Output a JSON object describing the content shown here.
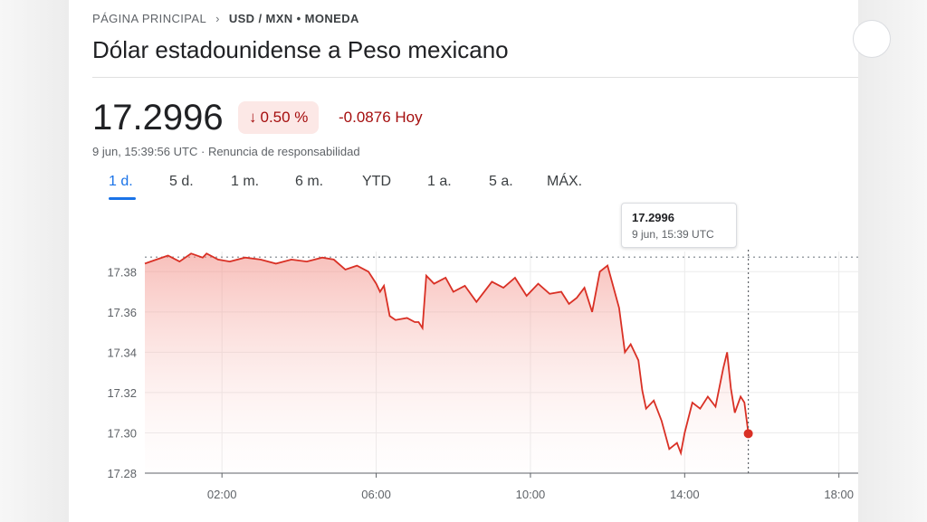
{
  "breadcrumb": {
    "home": "PÁGINA PRINCIPAL",
    "pair": "USD / MXN",
    "separator": "•",
    "kind": "MONEDA"
  },
  "title": "Dólar estadounidense a Peso mexicano",
  "quote": {
    "price": "17.2996",
    "percent_change": "0.50 %",
    "change_direction": "down",
    "abs_change": "-0.0876 Hoy",
    "timestamp": "9 jun, 15:39:56 UTC",
    "disclaimer": "Renuncia de responsabilidad"
  },
  "tabs": [
    {
      "label": "1 d.",
      "active": true
    },
    {
      "label": "5 d.",
      "active": false
    },
    {
      "label": "1 m.",
      "active": false
    },
    {
      "label": "6 m.",
      "active": false
    },
    {
      "label": "YTD",
      "active": false
    },
    {
      "label": "1 a.",
      "active": false
    },
    {
      "label": "5 a.",
      "active": false
    },
    {
      "label": "MÁX.",
      "active": false
    }
  ],
  "tooltip": {
    "value": "17.2996",
    "time": "9 jun, 15:39 UTC"
  },
  "colors": {
    "line": "#d93025",
    "accent": "#1a73e8",
    "negative": "#a50e0e"
  },
  "chart_data": {
    "type": "area",
    "x_unit": "hours (UTC)",
    "xlim": [
      0,
      18.5
    ],
    "ylim": [
      17.28,
      17.39
    ],
    "x_ticks": [
      2,
      6,
      10,
      14,
      18
    ],
    "x_tick_labels": [
      "02:00",
      "06:00",
      "10:00",
      "14:00",
      "18:00"
    ],
    "y_ticks": [
      17.28,
      17.3,
      17.32,
      17.34,
      17.36,
      17.38
    ],
    "y_tick_labels": [
      "17.28",
      "17.30",
      "17.32",
      "17.34",
      "17.36",
      "17.38"
    ],
    "reference_value": 17.3872,
    "current": {
      "x": 15.65,
      "y": 17.2996
    },
    "x": [
      0.0,
      0.3,
      0.6,
      0.9,
      1.2,
      1.5,
      1.6,
      1.9,
      2.2,
      2.6,
      3.0,
      3.4,
      3.8,
      4.2,
      4.6,
      4.9,
      5.2,
      5.5,
      5.8,
      6.0,
      6.1,
      6.2,
      6.35,
      6.5,
      6.8,
      7.0,
      7.1,
      7.2,
      7.3,
      7.5,
      7.8,
      8.0,
      8.3,
      8.6,
      9.0,
      9.3,
      9.6,
      9.9,
      10.2,
      10.5,
      10.8,
      11.0,
      11.2,
      11.4,
      11.6,
      11.8,
      12.0,
      12.1,
      12.3,
      12.45,
      12.6,
      12.8,
      12.9,
      13.0,
      13.2,
      13.4,
      13.6,
      13.8,
      13.9,
      14.0,
      14.2,
      14.4,
      14.6,
      14.8,
      15.0,
      15.1,
      15.2,
      15.3,
      15.45,
      15.55,
      15.65
    ],
    "y": [
      17.384,
      17.386,
      17.388,
      17.385,
      17.389,
      17.387,
      17.389,
      17.386,
      17.385,
      17.387,
      17.386,
      17.384,
      17.386,
      17.385,
      17.387,
      17.386,
      17.381,
      17.383,
      17.38,
      17.374,
      17.37,
      17.373,
      17.358,
      17.356,
      17.357,
      17.355,
      17.355,
      17.352,
      17.378,
      17.374,
      17.377,
      17.37,
      17.373,
      17.365,
      17.375,
      17.372,
      17.377,
      17.368,
      17.374,
      17.369,
      17.37,
      17.364,
      17.367,
      17.372,
      17.36,
      17.38,
      17.383,
      17.376,
      17.362,
      17.34,
      17.344,
      17.336,
      17.321,
      17.312,
      17.316,
      17.306,
      17.292,
      17.295,
      17.29,
      17.3,
      17.315,
      17.312,
      17.318,
      17.313,
      17.332,
      17.34,
      17.322,
      17.31,
      17.318,
      17.315,
      17.3
    ]
  }
}
